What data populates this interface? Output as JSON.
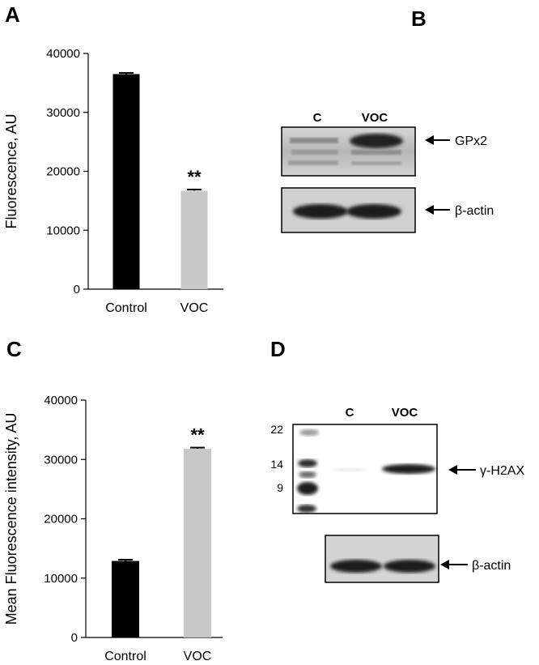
{
  "panels": {
    "A": "A",
    "B": "B",
    "C": "C",
    "D": "D"
  },
  "chart_data": [
    {
      "panel": "A",
      "type": "bar",
      "categories": [
        "Control",
        "VOC"
      ],
      "values": [
        36500,
        16700
      ],
      "errors": [
        200,
        200
      ],
      "colors": [
        "#000000",
        "#c8c8c8"
      ],
      "ylabel": "Fluorescence, AU",
      "ylim": [
        0,
        40000
      ],
      "yticks": [
        0,
        10000,
        20000,
        30000,
        40000
      ],
      "annotations": [
        {
          "category": "VOC",
          "text": "**"
        }
      ],
      "grid": false
    },
    {
      "panel": "C",
      "type": "bar",
      "categories": [
        "Control",
        "VOC"
      ],
      "values": [
        12900,
        31800
      ],
      "errors": [
        200,
        200
      ],
      "colors": [
        "#000000",
        "#c8c8c8"
      ],
      "ylabel": "Mean Fluorescence intensity, AU",
      "ylim": [
        0,
        40000
      ],
      "yticks": [
        0,
        10000,
        20000,
        30000,
        40000
      ],
      "annotations": [
        {
          "category": "VOC",
          "text": "**"
        }
      ],
      "grid": false
    }
  ],
  "blots": {
    "B": {
      "lanes": [
        "C",
        "VOC"
      ],
      "bands": [
        "GPx2",
        "β-actin"
      ]
    },
    "D": {
      "lanes": [
        "C",
        "VOC"
      ],
      "markers": [
        "22",
        "14",
        "9"
      ],
      "bands": [
        "γ-H2AX",
        "β-actin"
      ]
    }
  }
}
